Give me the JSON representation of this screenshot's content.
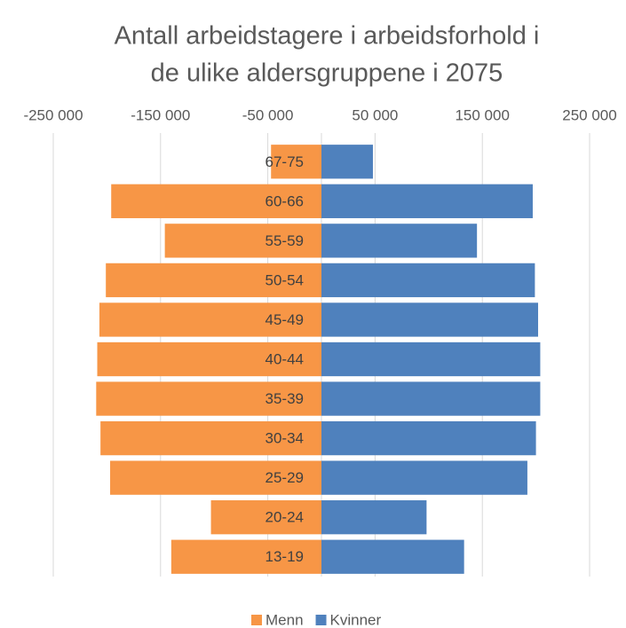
{
  "chart_data": {
    "type": "bar",
    "orientation": "horizontal",
    "stacked": true,
    "title": [
      "Antall arbeidstagere i arbeidsforhold i",
      "de ulike aldersgruppene i 2075"
    ],
    "categories": [
      "67-75",
      "60-66",
      "55-59",
      "50-54",
      "45-49",
      "40-44",
      "35-39",
      "30-34",
      "25-29",
      "20-24",
      "13-19"
    ],
    "series": [
      {
        "name": "Menn",
        "color": "#f79646",
        "values": [
          -47000,
          -196000,
          -146000,
          -201000,
          -207000,
          -209000,
          -210000,
          -206000,
          -197000,
          -103000,
          -140000
        ]
      },
      {
        "name": "Kvinner",
        "color": "#4f81bd",
        "values": [
          48000,
          197000,
          145000,
          199000,
          202000,
          204000,
          204000,
          200000,
          192000,
          98000,
          133000
        ]
      }
    ],
    "xlim": [
      -250000,
      250000
    ],
    "xticks": [
      {
        "value": -250000,
        "label": "-250 000"
      },
      {
        "value": -150000,
        "label": "-150 000"
      },
      {
        "value": -50000,
        "label": "-50 000"
      },
      {
        "value": 50000,
        "label": "50 000"
      },
      {
        "value": 150000,
        "label": "150 000"
      },
      {
        "value": 250000,
        "label": "250 000"
      }
    ],
    "grid": true,
    "legend": "bottom"
  }
}
